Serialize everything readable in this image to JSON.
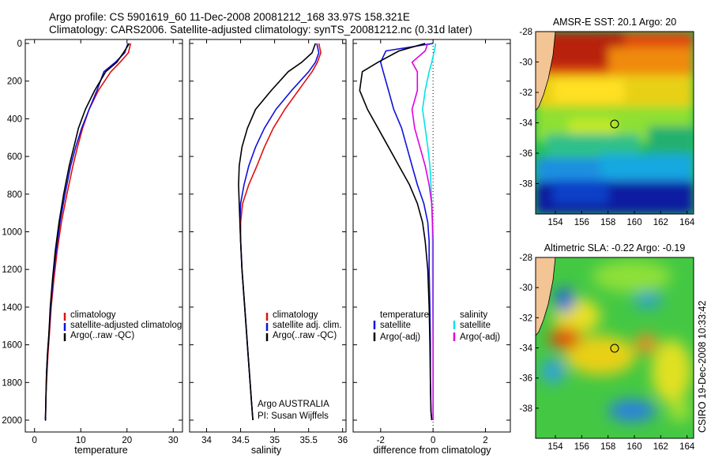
{
  "header": {
    "line1": "Argo profile: CS 5901619_60 11-Dec-2008 20081212_168 33.97S 158.321E",
    "line2": "Climatology: CARS2006. Satellite-adjusted climatology: synTS_20081212.nc (0.31d later)"
  },
  "side_text": "CSIRO 19-Dec-2008 10:33:42",
  "colors": {
    "red": "#e01010",
    "blue": "#1010dd",
    "black": "#000000",
    "cyan": "#00e5e5",
    "magenta": "#e000e0",
    "land": "#f3c595",
    "circle": "#000000"
  },
  "chart_data": [
    {
      "id": "temperature",
      "type": "line",
      "xlabel": "temperature",
      "ylabel": "",
      "xlim": [
        -2,
        32
      ],
      "ylim": [
        2050,
        0
      ],
      "y_reversed": true,
      "xticks": [
        0,
        10,
        20,
        30
      ],
      "yticks": [
        0,
        200,
        400,
        600,
        800,
        1000,
        1200,
        1400,
        1600,
        1800,
        2000
      ],
      "legend": {
        "position": "bottom-right",
        "entries": [
          "climatology",
          "satellite-adjusted climatolog",
          "Argo(..raw -QC)"
        ]
      },
      "series": [
        {
          "name": "climatology",
          "color": "red",
          "x": [
            20.8,
            20.3,
            18.5,
            16.5,
            13.8,
            11.8,
            10.4,
            9.3,
            8.3,
            7.0,
            5.8,
            4.9,
            4.2,
            3.6,
            3.2,
            2.9,
            2.7,
            2.5,
            2.4,
            2.35,
            2.3
          ],
          "y": [
            0,
            50,
            100,
            150,
            250,
            350,
            450,
            550,
            650,
            800,
            950,
            1100,
            1250,
            1400,
            1550,
            1650,
            1750,
            1850,
            1950,
            2000,
            2000
          ]
        },
        {
          "name": "satellite-adjusted climatology",
          "color": "blue",
          "x": [
            20.2,
            19.5,
            17.5,
            15.0,
            13.5,
            11.8,
            10.2,
            8.9,
            7.8,
            6.6,
            5.5,
            4.7,
            4.0,
            3.5,
            3.1,
            2.8,
            2.6,
            2.5,
            2.4,
            2.35,
            2.3
          ],
          "y": [
            0,
            50,
            100,
            150,
            250,
            350,
            450,
            550,
            650,
            800,
            950,
            1100,
            1250,
            1400,
            1550,
            1650,
            1750,
            1850,
            1950,
            2000,
            2000
          ]
        },
        {
          "name": "Argo(..raw -QC)",
          "color": "black",
          "x": [
            20.5,
            19.2,
            17.8,
            15.4,
            13.0,
            11.0,
            9.5,
            8.5,
            7.5,
            6.3,
            5.3,
            4.5,
            3.9,
            3.4,
            3.1,
            2.8,
            2.6,
            2.5,
            2.4,
            2.35,
            2.3
          ],
          "y": [
            0,
            50,
            100,
            150,
            250,
            350,
            450,
            550,
            650,
            800,
            950,
            1100,
            1250,
            1400,
            1550,
            1650,
            1750,
            1850,
            1950,
            2000,
            2000
          ]
        }
      ]
    },
    {
      "id": "salinity",
      "type": "line",
      "xlabel": "salinity",
      "ylabel": "",
      "xlim": [
        33.75,
        36.05
      ],
      "ylim": [
        2050,
        0
      ],
      "y_reversed": true,
      "xticks": [
        34,
        34.5,
        35,
        35.5,
        36
      ],
      "yticks": [],
      "legend": {
        "position": "bottom-right",
        "entries": [
          "climatology",
          "satellite adj. clim.",
          "Argo(..raw -QC)"
        ]
      },
      "annotation": [
        "Argo AUSTRALIA",
        "PI: Susan Wijffels"
      ],
      "series": [
        {
          "name": "climatology",
          "color": "red",
          "x": [
            35.65,
            35.68,
            35.63,
            35.55,
            35.35,
            35.15,
            34.98,
            34.85,
            34.74,
            34.62,
            34.53,
            34.5,
            34.5,
            34.52,
            34.55,
            34.58,
            34.61,
            34.64,
            34.66,
            34.67,
            34.68
          ],
          "y": [
            0,
            50,
            100,
            150,
            250,
            350,
            450,
            550,
            650,
            750,
            850,
            950,
            1050,
            1200,
            1350,
            1500,
            1650,
            1800,
            1900,
            1950,
            2000
          ]
        },
        {
          "name": "satellite adj. clim.",
          "color": "blue",
          "x": [
            35.62,
            35.65,
            35.6,
            35.5,
            35.25,
            35.02,
            34.85,
            34.72,
            34.62,
            34.55,
            34.5,
            34.49,
            34.5,
            34.52,
            34.55,
            34.58,
            34.61,
            34.64,
            34.66,
            34.67,
            34.68
          ],
          "y": [
            0,
            50,
            100,
            150,
            250,
            350,
            450,
            550,
            650,
            750,
            850,
            950,
            1050,
            1200,
            1350,
            1500,
            1650,
            1800,
            1900,
            1950,
            2000
          ]
        },
        {
          "name": "Argo(..raw -QC)",
          "color": "black",
          "x": [
            35.6,
            35.55,
            35.4,
            35.2,
            34.95,
            34.72,
            34.6,
            34.52,
            34.48,
            34.47,
            34.48,
            34.49,
            34.5,
            34.52,
            34.55,
            34.58,
            34.61,
            34.64,
            34.66,
            34.67,
            34.68
          ],
          "y": [
            0,
            50,
            100,
            150,
            250,
            350,
            450,
            550,
            650,
            750,
            850,
            950,
            1050,
            1200,
            1350,
            1500,
            1650,
            1800,
            1900,
            1950,
            2000
          ]
        }
      ]
    },
    {
      "id": "difference",
      "type": "line",
      "xlabel": "difference from climatology",
      "ylabel": "",
      "xlim": [
        -3.05,
        2.95
      ],
      "ylim": [
        2050,
        0
      ],
      "y_reversed": true,
      "xticks": [
        -2,
        0,
        2
      ],
      "yticks": [],
      "legend": {
        "position": "bottom-right",
        "entries": [
          "temperature",
          "satellite",
          "Argo(-adj)",
          "salinity",
          "satellite",
          "Argo(-adj)"
        ]
      },
      "series": [
        {
          "name": "temperature satellite",
          "color": "blue",
          "x": [
            0,
            -1.8,
            -2.0,
            -1.9,
            -1.7,
            -1.5,
            -1.2,
            -1.0,
            -0.8,
            -0.6,
            -0.35,
            -0.2,
            -0.15,
            -0.15,
            -0.12,
            -0.1,
            -0.1,
            -0.08,
            -0.05
          ],
          "y": [
            0,
            40,
            100,
            150,
            250,
            350,
            450,
            550,
            650,
            750,
            850,
            950,
            1050,
            1200,
            1400,
            1600,
            1800,
            1950,
            2000
          ]
        },
        {
          "name": "temperature Argo(-adj)",
          "color": "black",
          "x": [
            -0.3,
            -1.3,
            -2.1,
            -2.7,
            -2.8,
            -2.5,
            -2.1,
            -1.7,
            -1.3,
            -0.9,
            -0.6,
            -0.4,
            -0.3,
            -0.2,
            -0.15,
            -0.12,
            -0.1,
            -0.08,
            -0.05
          ],
          "y": [
            0,
            40,
            100,
            150,
            250,
            350,
            450,
            550,
            650,
            750,
            850,
            950,
            1050,
            1200,
            1400,
            1600,
            1800,
            1950,
            2000
          ]
        },
        {
          "name": "salinity satellite",
          "color": "cyan",
          "x": [
            0.1,
            0.05,
            -0.05,
            -0.15,
            -0.3,
            -0.4,
            -0.3,
            -0.2,
            -0.12,
            -0.08,
            -0.05,
            -0.03,
            -0.02,
            -0.02,
            -0.01,
            0,
            0,
            0,
            0
          ],
          "y": [
            0,
            40,
            100,
            150,
            250,
            350,
            450,
            550,
            650,
            750,
            850,
            950,
            1050,
            1200,
            1400,
            1600,
            1800,
            1950,
            2000
          ]
        },
        {
          "name": "salinity Argo(-adj)",
          "color": "magenta",
          "x": [
            -0.2,
            -0.3,
            -0.8,
            -0.6,
            -0.6,
            -0.8,
            -0.7,
            -0.5,
            -0.3,
            -0.15,
            -0.05,
            -0.02,
            0,
            0,
            0,
            0,
            0,
            0,
            0
          ],
          "y": [
            0,
            40,
            100,
            150,
            250,
            350,
            450,
            550,
            650,
            750,
            850,
            950,
            1050,
            1200,
            1400,
            1600,
            1800,
            1950,
            2000
          ]
        }
      ]
    },
    {
      "id": "sst_map",
      "type": "heatmap",
      "title": "AMSR-E SST: 20.1 Argo: 20",
      "xlim": [
        152.5,
        164.5
      ],
      "ylim": [
        -40,
        -28
      ],
      "xticks": [
        154,
        156,
        158,
        160,
        162,
        164
      ],
      "yticks": [
        -28,
        -30,
        -32,
        -34,
        -36,
        -38
      ],
      "argo_position": [
        158.321,
        -33.97
      ]
    },
    {
      "id": "sla_map",
      "type": "heatmap",
      "title": "Altimetric SLA: -0.22 Argo: -0.19",
      "xlim": [
        152.5,
        164.5
      ],
      "ylim": [
        -40,
        -28
      ],
      "xticks": [
        154,
        156,
        158,
        160,
        162,
        164
      ],
      "yticks": [
        -28,
        -30,
        -32,
        -34,
        -36,
        -38
      ],
      "argo_position": [
        158.321,
        -33.97
      ]
    }
  ]
}
